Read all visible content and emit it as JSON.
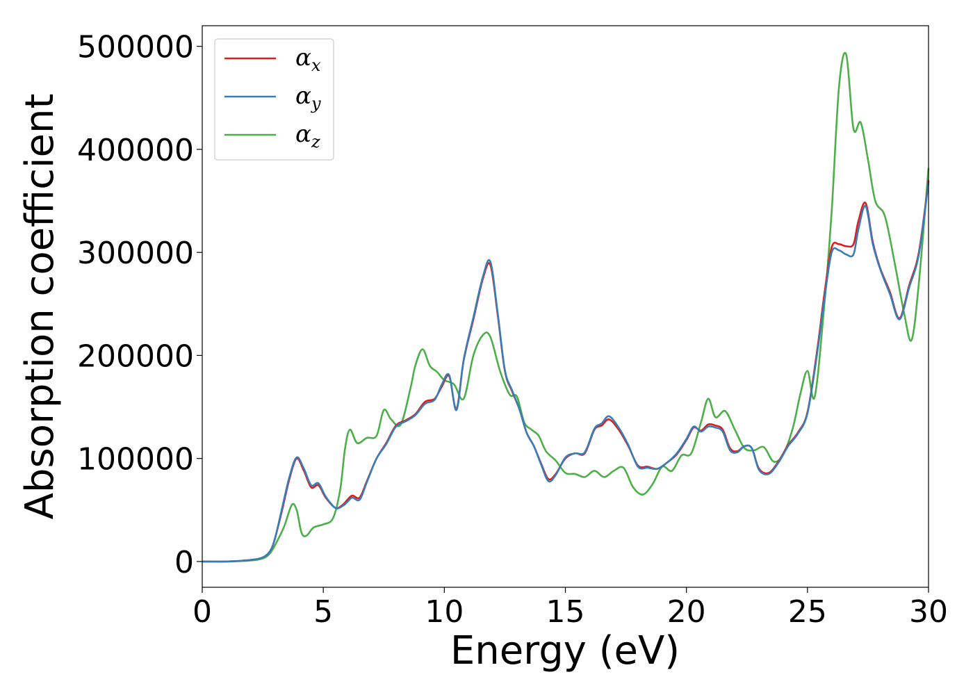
{
  "chart_data": {
    "type": "line",
    "title": "",
    "xlabel": "Energy (eV)",
    "ylabel": "Absorption coefficient",
    "xlim": [
      0,
      30
    ],
    "ylim": [
      -25000,
      520000
    ],
    "xticks": [
      0,
      5,
      10,
      15,
      20,
      25,
      30
    ],
    "xtick_labels": [
      "0",
      "5",
      "10",
      "15",
      "20",
      "25",
      "30"
    ],
    "yticks": [
      0,
      100000,
      200000,
      300000,
      400000,
      500000
    ],
    "ytick_labels": [
      "0",
      "100000",
      "200000",
      "300000",
      "400000",
      "500000"
    ],
    "grid": false,
    "legend_position": "top-left",
    "series": [
      {
        "name": "αx",
        "symbol": "α",
        "subscript": "x",
        "color": "#e41a1c",
        "x": [
          0,
          1,
          2,
          2.5,
          2.8,
          3.0,
          3.3,
          3.6,
          3.9,
          4.2,
          4.5,
          4.8,
          5.1,
          5.5,
          5.8,
          6.0,
          6.2,
          6.5,
          6.8,
          7.2,
          7.6,
          8.0,
          8.4,
          8.8,
          9.2,
          9.6,
          9.9,
          10.2,
          10.5,
          10.8,
          11.2,
          11.6,
          11.9,
          12.2,
          12.5,
          12.8,
          13.1,
          13.4,
          13.7,
          14.0,
          14.3,
          14.6,
          15.0,
          15.4,
          15.8,
          16.2,
          16.5,
          16.8,
          17.2,
          17.6,
          18.0,
          18.4,
          18.8,
          19.2,
          19.6,
          20.0,
          20.3,
          20.6,
          20.9,
          21.2,
          21.5,
          21.8,
          22.1,
          22.4,
          22.7,
          23.0,
          23.4,
          23.8,
          24.2,
          24.6,
          25.0,
          25.4,
          25.7,
          26.0,
          26.3,
          26.6,
          26.9,
          27.1,
          27.4,
          27.7,
          28.0,
          28.4,
          28.8,
          29.2,
          29.6,
          30.0
        ],
        "y": [
          0,
          0,
          1500,
          4000,
          10000,
          22000,
          50000,
          80000,
          100000,
          88000,
          72000,
          74000,
          62000,
          52000,
          55000,
          60000,
          64000,
          62000,
          78000,
          100000,
          115000,
          132000,
          137000,
          143000,
          155000,
          158000,
          170000,
          180000,
          148000,
          195000,
          235000,
          275000,
          288000,
          240000,
          185000,
          165000,
          148000,
          125000,
          112000,
          95000,
          80000,
          85000,
          100000,
          105000,
          105000,
          128000,
          132000,
          138000,
          128000,
          112000,
          93000,
          92000,
          90000,
          96000,
          104000,
          118000,
          130000,
          127000,
          133000,
          132000,
          128000,
          110000,
          107000,
          112000,
          110000,
          90000,
          86000,
          97000,
          113000,
          125000,
          145000,
          205000,
          260000,
          305000,
          308000,
          306000,
          308000,
          330000,
          348000,
          310000,
          285000,
          262000,
          236000,
          268000,
          300000,
          370000
        ]
      },
      {
        "name": "αy",
        "symbol": "α",
        "subscript": "y",
        "color": "#377eb8",
        "x": [
          0,
          1,
          2,
          2.5,
          2.8,
          3.0,
          3.3,
          3.6,
          3.9,
          4.2,
          4.5,
          4.8,
          5.1,
          5.5,
          5.8,
          6.0,
          6.2,
          6.5,
          6.8,
          7.2,
          7.6,
          8.0,
          8.4,
          8.8,
          9.2,
          9.6,
          9.9,
          10.2,
          10.5,
          10.8,
          11.2,
          11.6,
          11.9,
          12.2,
          12.5,
          12.8,
          13.1,
          13.4,
          13.7,
          14.0,
          14.3,
          14.6,
          15.0,
          15.4,
          15.8,
          16.2,
          16.5,
          16.8,
          17.2,
          17.6,
          18.0,
          18.4,
          18.8,
          19.2,
          19.6,
          20.0,
          20.3,
          20.6,
          20.9,
          21.2,
          21.5,
          21.8,
          22.1,
          22.4,
          22.7,
          23.0,
          23.4,
          23.8,
          24.2,
          24.6,
          25.0,
          25.4,
          25.7,
          26.0,
          26.3,
          26.6,
          26.9,
          27.1,
          27.4,
          27.7,
          28.0,
          28.4,
          28.8,
          29.2,
          29.6,
          30.0
        ],
        "y": [
          0,
          0,
          1500,
          4000,
          10000,
          22000,
          52000,
          82000,
          101000,
          90000,
          74000,
          76000,
          63000,
          52000,
          54000,
          58000,
          62000,
          60000,
          77000,
          100000,
          114000,
          131000,
          136000,
          142000,
          153000,
          157000,
          172000,
          181000,
          147000,
          196000,
          237000,
          277000,
          291000,
          242000,
          186000,
          166000,
          148000,
          125000,
          112000,
          94000,
          78000,
          84000,
          101000,
          105000,
          106000,
          129000,
          134000,
          141000,
          130000,
          113000,
          92000,
          91000,
          90000,
          96000,
          105000,
          119000,
          131000,
          126000,
          131000,
          130000,
          126000,
          108000,
          106000,
          112000,
          110000,
          89000,
          85000,
          96000,
          112000,
          124000,
          144000,
          202000,
          255000,
          300000,
          302000,
          298000,
          298000,
          322000,
          345000,
          308000,
          284000,
          260000,
          235000,
          266000,
          298000,
          368000
        ]
      },
      {
        "name": "αz",
        "symbol": "α",
        "subscript": "z",
        "color": "#4daf4a",
        "x": [
          0,
          1,
          2,
          2.5,
          2.8,
          3.1,
          3.4,
          3.7,
          3.9,
          4.1,
          4.3,
          4.6,
          5.0,
          5.4,
          5.7,
          5.9,
          6.1,
          6.4,
          6.8,
          7.2,
          7.5,
          7.8,
          8.2,
          8.6,
          8.8,
          9.1,
          9.4,
          9.7,
          10.0,
          10.4,
          10.8,
          11.2,
          11.6,
          11.9,
          12.3,
          12.7,
          13.0,
          13.3,
          13.6,
          13.9,
          14.2,
          14.6,
          15.0,
          15.4,
          15.8,
          16.2,
          16.6,
          17.0,
          17.4,
          17.8,
          18.2,
          18.6,
          19.0,
          19.4,
          19.8,
          20.2,
          20.6,
          20.9,
          21.2,
          21.6,
          22.0,
          22.4,
          22.8,
          23.2,
          23.6,
          24.0,
          24.4,
          24.7,
          25.0,
          25.3,
          25.7,
          26.0,
          26.3,
          26.6,
          26.9,
          27.2,
          27.5,
          27.8,
          28.2,
          28.6,
          29.0,
          29.3,
          29.6,
          30.0
        ],
        "y": [
          0,
          0,
          1000,
          3000,
          8000,
          20000,
          35000,
          55000,
          50000,
          28000,
          25000,
          33000,
          36000,
          42000,
          70000,
          110000,
          128000,
          115000,
          120000,
          122000,
          147000,
          138000,
          133000,
          168000,
          190000,
          206000,
          190000,
          184000,
          176000,
          172000,
          158000,
          200000,
          220000,
          218000,
          185000,
          162000,
          160000,
          135000,
          128000,
          122000,
          107000,
          98000,
          86000,
          85000,
          82000,
          88000,
          82000,
          88000,
          91000,
          72000,
          65000,
          75000,
          92000,
          88000,
          103000,
          105000,
          135000,
          158000,
          140000,
          146000,
          128000,
          110000,
          108000,
          111000,
          97000,
          104000,
          130000,
          162000,
          185000,
          160000,
          250000,
          340000,
          460000,
          492000,
          420000,
          426000,
          390000,
          350000,
          335000,
          290000,
          240000,
          215000,
          270000,
          382000
        ]
      }
    ]
  }
}
